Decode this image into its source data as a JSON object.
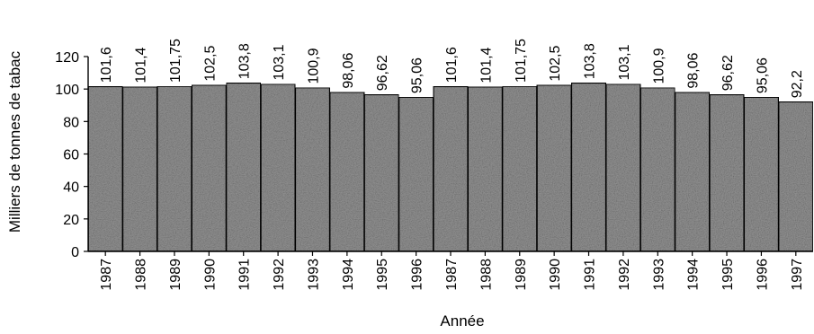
{
  "chart_data": {
    "type": "bar",
    "title": "",
    "xlabel": "Année",
    "ylabel": "Milliers de tonnes de tabac",
    "ylim": [
      0,
      120
    ],
    "yticks": [
      0,
      20,
      40,
      60,
      80,
      100,
      120
    ],
    "grid": false,
    "legend": "none",
    "bar_color": "#8c8c8c",
    "categories": [
      "1987",
      "1988",
      "1989",
      "1990",
      "1991",
      "1992",
      "1993",
      "1994",
      "1995",
      "1996",
      "1987",
      "1988",
      "1989",
      "1990",
      "1991",
      "1992",
      "1993",
      "1994",
      "1995",
      "1996",
      "1997"
    ],
    "values": [
      101.6,
      101.4,
      101.75,
      102.5,
      103.8,
      103.1,
      100.9,
      98.06,
      96.62,
      95.06,
      101.6,
      101.4,
      101.75,
      102.5,
      103.8,
      103.1,
      100.9,
      98.06,
      96.62,
      95.06,
      92.2
    ],
    "data_labels": [
      "101,6",
      "101,4",
      "101,75",
      "102,5",
      "103,8",
      "103,1",
      "100,9",
      "98,06",
      "96,62",
      "95,06",
      "101,6",
      "101,4",
      "101,75",
      "102,5",
      "103,8",
      "103,1",
      "100,9",
      "98,06",
      "96,62",
      "95,06",
      "92,2"
    ]
  }
}
